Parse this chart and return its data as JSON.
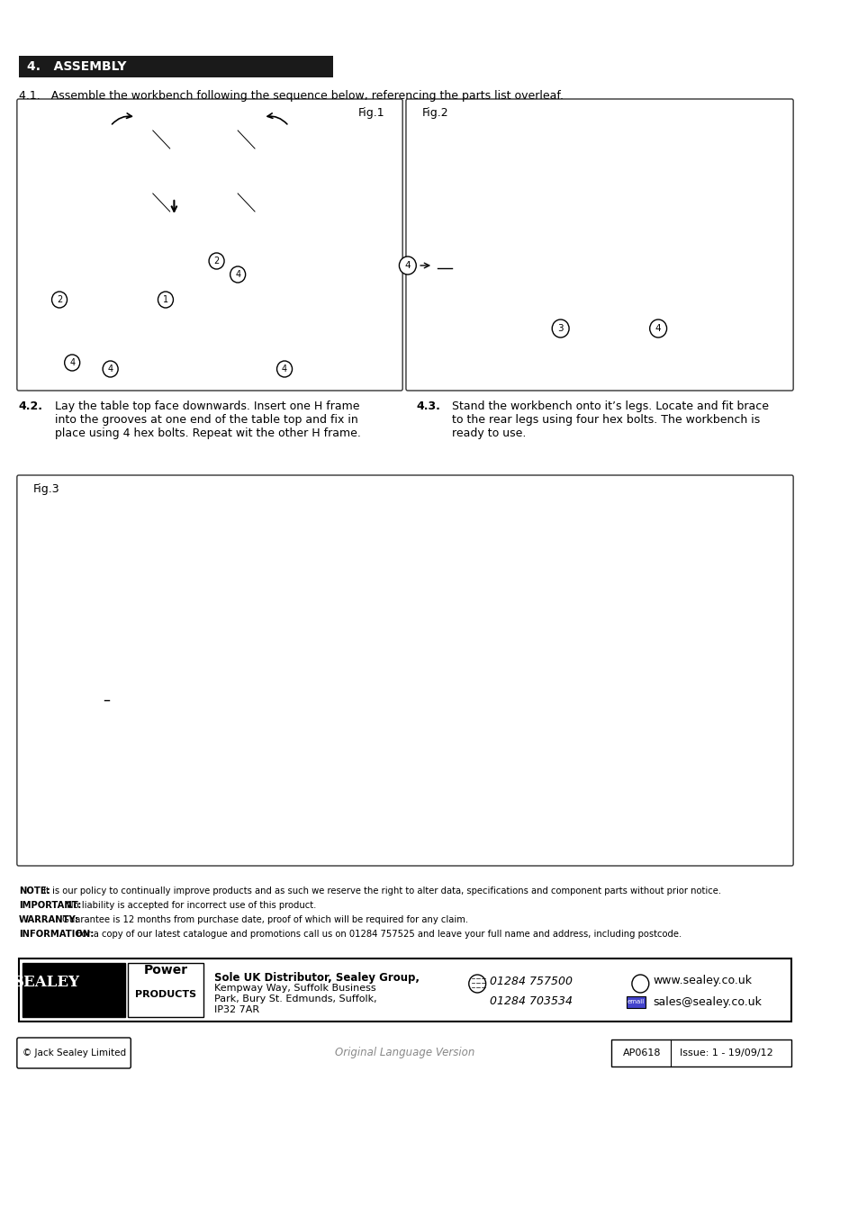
{
  "title": "4.   ASSEMBLY",
  "section_41": "4.1.   Assemble the workbench following the sequence below, referencing the parts list overleaf.",
  "section_42_title": "4.2.",
  "section_42_text": "Lay the table top face downwards. Insert one H frame\ninto the grooves at one end of the table top and fix in\nplace using 4 hex bolts. Repeat wit the other H frame.",
  "section_43_title": "4.3.",
  "section_43_text": "Stand the workbench onto it’s legs. Locate and fit brace\nto the rear legs using four hex bolts. The workbench is\nready to use.",
  "fig1_label": "Fig.1",
  "fig2_label": "Fig.2",
  "fig3_label": "Fig.3",
  "footer_copyright": "© Jack Sealey Limited",
  "footer_center": "Original Language Version",
  "footer_right1": "AP0618",
  "footer_right2": "Issue: 1 - 19/09/12",
  "distributor_line1": "Sole UK Distributor, Sealey Group,",
  "distributor_line2": "Kempway Way, Suffolk Business",
  "distributor_line3": "Park, Bury St. Edmunds, Suffolk,",
  "distributor_line4": "IP32 7AR",
  "phone1": "01284 757500",
  "phone2": "01284 703534",
  "web": "www.sealey.co.uk",
  "email": "sales@sealey.co.uk",
  "note_text": "NOTE: It is our policy to continually improve products and as such we reserve the right to alter data, specifications and component parts without prior notice.\nIMPORTANT: No liability is accepted for incorrect use of this product.\nWARRANTY: Guarantee is 12 months from purchase date, proof of which will be required for any claim.\nINFORMATION: For a copy of our latest catalogue and promotions call us on 01284 757525 and leave your full name and address, including postcode.",
  "bg_color": "#ffffff",
  "header_bg": "#1a1a1a",
  "header_text_color": "#ffffff",
  "border_color": "#333333",
  "text_color": "#000000",
  "light_gray": "#d0d0d0"
}
